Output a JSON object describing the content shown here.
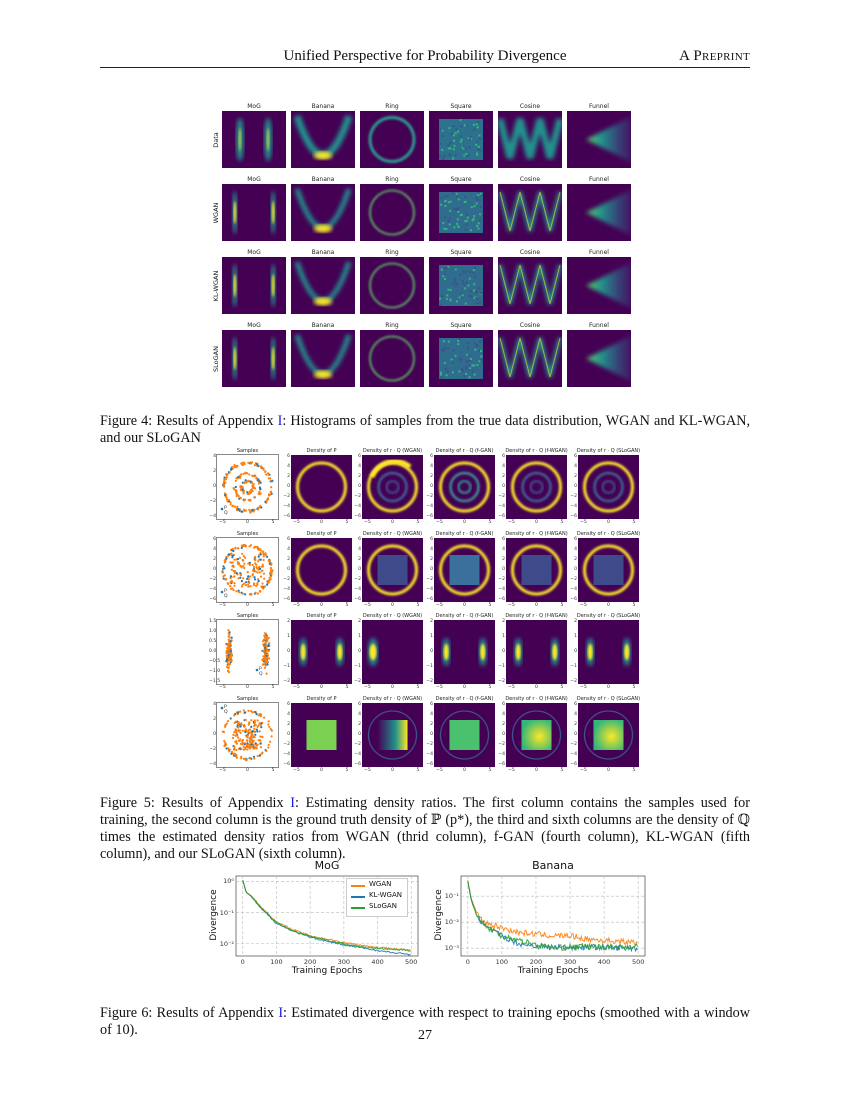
{
  "header": {
    "title": "Unified Perspective for Probability Divergence",
    "right": "A Preprint"
  },
  "figure4": {
    "col_titles": [
      "MoG",
      "Banana",
      "Ring",
      "Square",
      "Cosine",
      "Funnel"
    ],
    "row_labels": [
      "Data",
      "WGAN",
      "KL-WGAN",
      "SLoGAN"
    ]
  },
  "caption4": {
    "label": "Figure 4:",
    "pre": " Results of Appendix ",
    "link": "I",
    "post": ": Histograms of samples from the true data distribution, WGAN and KL-WGAN, and our SLoGAN"
  },
  "figure5": {
    "col_titles": [
      "Samples",
      "Density of P",
      "Density of r · Q (WGAN)",
      "Density of r · Q (f-GAN)",
      "Density of r · Q (f-WGAN)",
      "Density of r · Q (SLoGAN)"
    ],
    "legend": [
      "P",
      "Q"
    ],
    "x_ticks": [
      "−5",
      "0",
      "5"
    ],
    "rows": [
      {
        "kind": "rings",
        "sample_y_ticks": [
          "4",
          "2",
          "0",
          "−2",
          "−4"
        ],
        "y_ticks": [
          "6",
          "4",
          "2",
          "0",
          "−2",
          "−4",
          "−6"
        ]
      },
      {
        "kind": "ring-square",
        "sample_y_ticks": [
          "6",
          "4",
          "2",
          "0",
          "−2",
          "−4",
          "−6"
        ],
        "y_ticks": [
          "6",
          "4",
          "2",
          "0",
          "−2",
          "−4",
          "−6"
        ]
      },
      {
        "kind": "mog",
        "sample_y_ticks": [
          "1.5",
          "1.0",
          "0.5",
          "0.0",
          "−0.5",
          "−1.0",
          "−1.5"
        ],
        "y_ticks": [
          "2",
          "1",
          "0",
          "−1",
          "−2"
        ]
      },
      {
        "kind": "square-ring",
        "sample_y_ticks": [
          "4",
          "2",
          "0",
          "−2",
          "−4"
        ],
        "y_ticks": [
          "6",
          "4",
          "2",
          "0",
          "−2",
          "−4",
          "−6"
        ]
      }
    ]
  },
  "caption5": {
    "label": "Figure 5:",
    "pre": " Results of Appendix ",
    "link": "I",
    "post": ": Estimating density ratios. The first column contains the samples used for training, the second column is the ground truth density of ℙ (p*), the third and sixth columns are the density of ℚ times the estimated density ratios from WGAN (thrid column), f-GAN (fourth column), KL-WGAN (fifth column), and our SLoGAN (sixth column)."
  },
  "chart_data": [
    {
      "type": "line",
      "title": "MoG",
      "xlabel": "Training Epochs",
      "ylabel": "Divergence",
      "yscale": "log",
      "xlim": [
        -20,
        520
      ],
      "ylim": [
        0.004,
        1.5
      ],
      "grid": true,
      "legend": "top-right",
      "x_ticks": [
        "0",
        "100",
        "200",
        "300",
        "400",
        "500"
      ],
      "y_ticks": [
        {
          "value": 1,
          "label": "10⁰"
        },
        {
          "value": 0.1,
          "label": "10⁻¹"
        },
        {
          "value": 0.01,
          "label": "10⁻²"
        }
      ],
      "x": [
        0,
        10,
        25,
        50,
        100,
        150,
        200,
        250,
        300,
        350,
        400,
        450,
        500
      ],
      "series": [
        {
          "name": "WGAN",
          "color": "#ff7f0e",
          "values": [
            1.1,
            0.45,
            0.35,
            0.17,
            0.05,
            0.028,
            0.018,
            0.014,
            0.011,
            0.009,
            0.0075,
            0.007,
            0.006
          ]
        },
        {
          "name": "KL-WGAN",
          "color": "#1f77b4",
          "values": [
            1.1,
            0.45,
            0.33,
            0.15,
            0.045,
            0.025,
            0.016,
            0.012,
            0.009,
            0.0075,
            0.006,
            0.005,
            0.0045
          ]
        },
        {
          "name": "SLoGAN",
          "color": "#2ca02c",
          "values": [
            1.1,
            0.45,
            0.34,
            0.16,
            0.047,
            0.026,
            0.017,
            0.013,
            0.01,
            0.008,
            0.007,
            0.0065,
            0.006
          ]
        }
      ]
    },
    {
      "type": "line",
      "title": "Banana",
      "xlabel": "Training Epochs",
      "ylabel": "Divergence",
      "yscale": "log",
      "xlim": [
        -20,
        520
      ],
      "ylim": [
        0.0005,
        0.6
      ],
      "grid": true,
      "x_ticks": [
        "0",
        "100",
        "200",
        "300",
        "400",
        "500"
      ],
      "y_ticks": [
        {
          "value": 0.1,
          "label": "10⁻¹"
        },
        {
          "value": 0.01,
          "label": "10⁻²"
        },
        {
          "value": 0.001,
          "label": "10⁻³"
        }
      ],
      "x": [
        0,
        10,
        25,
        50,
        100,
        150,
        200,
        250,
        300,
        350,
        400,
        450,
        500
      ],
      "series": [
        {
          "name": "WGAN",
          "color": "#ff7f0e",
          "values": [
            0.4,
            0.08,
            0.025,
            0.01,
            0.006,
            0.004,
            0.0035,
            0.003,
            0.003,
            0.0022,
            0.002,
            0.0018,
            0.0016
          ]
        },
        {
          "name": "KL-WGAN",
          "color": "#1f77b4",
          "values": [
            0.4,
            0.07,
            0.02,
            0.007,
            0.003,
            0.0015,
            0.0012,
            0.0011,
            0.0011,
            0.0011,
            0.0011,
            0.001,
            0.001
          ]
        },
        {
          "name": "SLoGAN",
          "color": "#2ca02c",
          "values": [
            0.4,
            0.07,
            0.02,
            0.007,
            0.003,
            0.002,
            0.0014,
            0.001,
            0.0011,
            0.0012,
            0.0011,
            0.0011,
            0.0012
          ]
        }
      ]
    }
  ],
  "caption6": {
    "label": "Figure 6:",
    "pre": " Results of Appendix ",
    "link": "I",
    "post": ": Estimated divergence with respect to training epochs (smoothed with a window of 10)."
  },
  "page_number": "27",
  "colors": {
    "viridis_dark": "#440154",
    "viridis_teal": "#21918c",
    "viridis_yellow": "#fde725",
    "link": "#1a1ae6"
  }
}
